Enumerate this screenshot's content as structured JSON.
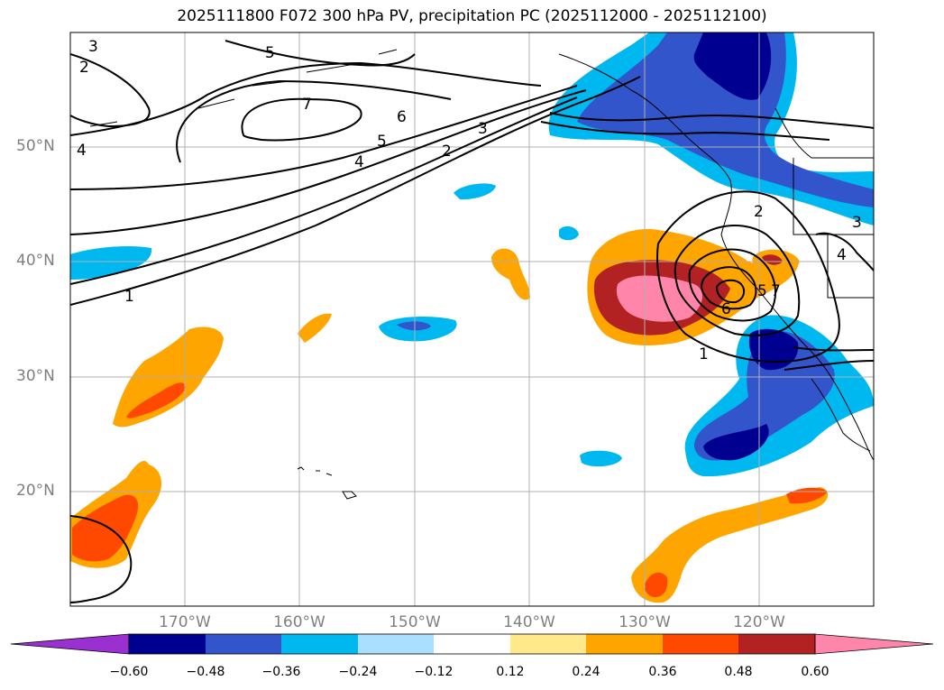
{
  "title": "2025111800 F072 300 hPa PV, precipitation PC (2025112000 - 2025112100)",
  "lat_labels": [
    "50°N",
    "40°N",
    "30°N",
    "20°N"
  ],
  "lon_labels": [
    "170°W",
    "160°W",
    "150°W",
    "140°W",
    "130°W",
    "120°W"
  ],
  "contour_labels": [
    "1",
    "1",
    "2",
    "2",
    "2",
    "3",
    "3",
    "3",
    "4",
    "4",
    "4",
    "5",
    "5",
    "5",
    "6",
    "6",
    "7",
    "7"
  ],
  "colorbar": {
    "ticks": [
      "−0.60",
      "−0.48",
      "−0.36",
      "−0.24",
      "−0.12",
      "0.12",
      "0.24",
      "0.36",
      "0.48",
      "0.60"
    ],
    "colors": [
      "#9b30d0",
      "#000090",
      "#3355cc",
      "#00b8f0",
      "#aadfff",
      "#ffffff",
      "#ffe98a",
      "#ffa500",
      "#ff4800",
      "#b22222",
      "#ff85aa"
    ]
  },
  "colors": {
    "pv_contour": "#000000",
    "coastline": "#000000",
    "gridline": "#b0b0b0",
    "tick_label": "#7f7f7f"
  }
}
